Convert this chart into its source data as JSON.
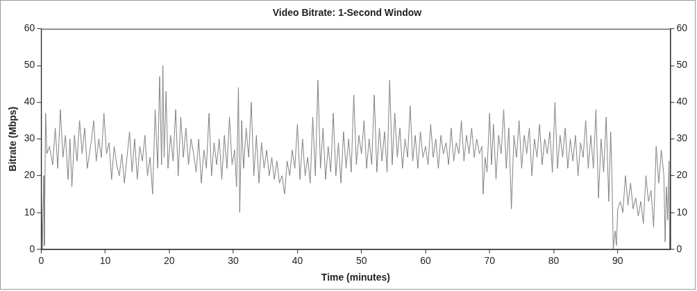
{
  "chart_data": {
    "type": "line",
    "title": "Video Bitrate: 1-Second Window",
    "xlabel": "Time (minutes)",
    "ylabel": "Bitrate (Mbps)",
    "xlim": [
      0,
      98.2
    ],
    "xticks": [
      0,
      10,
      20,
      30,
      40,
      50,
      60,
      70,
      80,
      90
    ],
    "ylim": [
      0,
      60
    ],
    "yticks": [
      0,
      10,
      20,
      30,
      40,
      50,
      60
    ],
    "y2lim": [
      0,
      60
    ],
    "y2ticks": [
      0,
      10,
      20,
      30,
      40,
      50,
      60
    ],
    "grid": false,
    "legend": false,
    "marker": "none",
    "line_style": "solid",
    "series": [
      {
        "color": "#808080",
        "x": [
          0.0,
          0.2,
          0.4,
          0.5,
          0.7,
          0.9,
          1.3,
          1.8,
          2.2,
          2.6,
          3.0,
          3.4,
          3.8,
          4.2,
          4.5,
          4.8,
          5.2,
          5.6,
          6.0,
          6.4,
          6.8,
          7.2,
          7.8,
          8.2,
          8.6,
          9.0,
          9.4,
          9.8,
          10.2,
          10.6,
          11.0,
          11.4,
          11.8,
          12.2,
          12.6,
          13.0,
          13.4,
          13.8,
          14.2,
          14.6,
          15.0,
          15.4,
          15.8,
          16.2,
          16.6,
          17.0,
          17.4,
          17.8,
          18.2,
          18.5,
          18.8,
          19.0,
          19.2,
          19.5,
          19.8,
          20.2,
          20.6,
          21.0,
          21.4,
          21.8,
          22.2,
          22.6,
          23.0,
          23.4,
          23.8,
          24.2,
          24.6,
          25.0,
          25.4,
          25.8,
          26.2,
          26.6,
          27.0,
          27.4,
          27.8,
          28.2,
          28.6,
          29.0,
          29.4,
          29.8,
          30.2,
          30.5,
          30.8,
          31.0,
          31.3,
          31.6,
          32.0,
          32.4,
          32.8,
          33.2,
          33.6,
          34.0,
          34.4,
          34.8,
          35.2,
          35.6,
          36.0,
          36.4,
          36.8,
          37.2,
          37.6,
          38.0,
          38.4,
          38.8,
          39.2,
          39.6,
          40.0,
          40.4,
          40.8,
          41.2,
          41.6,
          42.0,
          42.4,
          42.8,
          43.2,
          43.6,
          44.0,
          44.4,
          44.8,
          45.2,
          45.6,
          46.0,
          46.4,
          46.8,
          47.2,
          47.6,
          48.0,
          48.4,
          48.8,
          49.2,
          49.6,
          50.0,
          50.4,
          50.8,
          51.2,
          51.6,
          52.0,
          52.4,
          52.8,
          53.2,
          53.6,
          54.0,
          54.4,
          54.8,
          55.2,
          55.6,
          56.0,
          56.4,
          56.8,
          57.2,
          57.6,
          58.0,
          58.4,
          58.8,
          59.2,
          59.6,
          60.0,
          60.4,
          60.8,
          61.2,
          61.6,
          62.0,
          62.4,
          62.8,
          63.2,
          63.6,
          64.0,
          64.4,
          64.8,
          65.2,
          65.6,
          66.0,
          66.4,
          66.8,
          67.2,
          67.6,
          68.0,
          68.4,
          68.8,
          69.0,
          69.3,
          69.6,
          70.0,
          70.3,
          70.6,
          71.0,
          71.4,
          71.8,
          72.2,
          72.6,
          73.0,
          73.4,
          73.8,
          74.2,
          74.6,
          75.0,
          75.4,
          75.8,
          76.2,
          76.6,
          77.0,
          77.4,
          77.8,
          78.2,
          78.6,
          79.0,
          79.4,
          79.8,
          80.2,
          80.6,
          81.0,
          81.4,
          81.8,
          82.2,
          82.6,
          83.0,
          83.4,
          83.8,
          84.2,
          84.6,
          85.0,
          85.4,
          85.8,
          86.2,
          86.6,
          87.0,
          87.4,
          87.8,
          88.2,
          88.6,
          88.9,
          89.1,
          89.3,
          89.6,
          89.8,
          90.0,
          90.4,
          90.8,
          91.2,
          91.6,
          92.0,
          92.4,
          92.8,
          93.2,
          93.6,
          94.0,
          94.4,
          94.8,
          95.2,
          95.6,
          96.0,
          96.4,
          96.8,
          97.2,
          97.4,
          97.6,
          97.8,
          98.0,
          98.1
        ],
        "values": [
          18,
          0,
          20,
          1,
          37,
          26,
          28,
          23,
          33,
          22,
          38,
          25,
          31,
          19,
          30,
          17,
          31,
          24,
          35,
          26,
          33,
          22,
          29,
          35,
          24,
          30,
          25,
          37,
          26,
          29,
          19,
          28,
          23,
          20,
          26,
          18,
          25,
          32,
          21,
          30,
          19,
          28,
          24,
          31,
          20,
          25,
          15,
          38,
          22,
          47,
          23,
          50,
          25,
          43,
          22,
          31,
          24,
          38,
          20,
          36,
          25,
          33,
          23,
          30,
          26,
          21,
          30,
          18,
          27,
          22,
          37,
          20,
          29,
          23,
          30,
          19,
          31,
          22,
          36,
          23,
          27,
          17,
          44,
          10,
          35,
          22,
          33,
          25,
          40,
          20,
          31,
          18,
          29,
          22,
          27,
          20,
          25,
          19,
          24,
          18,
          20,
          15,
          24,
          20,
          27,
          22,
          34,
          19,
          30,
          20,
          25,
          18,
          36,
          20,
          46,
          22,
          33,
          19,
          28,
          21,
          37,
          20,
          29,
          18,
          32,
          22,
          30,
          21,
          42,
          23,
          31,
          26,
          35,
          22,
          30,
          23,
          42,
          21,
          33,
          24,
          32,
          21,
          46,
          23,
          37,
          25,
          33,
          22,
          30,
          25,
          39,
          24,
          31,
          22,
          32,
          25,
          28,
          23,
          34,
          25,
          30,
          22,
          31,
          26,
          29,
          23,
          33,
          24,
          29,
          26,
          35,
          24,
          31,
          26,
          33,
          25,
          30,
          26,
          28,
          15,
          25,
          21,
          37,
          23,
          34,
          19,
          31,
          26,
          38,
          22,
          33,
          11,
          31,
          25,
          35,
          22,
          31,
          26,
          33,
          20,
          30,
          25,
          34,
          23,
          30,
          26,
          32,
          21,
          40,
          22,
          31,
          25,
          33,
          22,
          30,
          24,
          31,
          20,
          29,
          25,
          35,
          22,
          31,
          22,
          38,
          14,
          30,
          21,
          36,
          13,
          32,
          20,
          0,
          5,
          1,
          11,
          13,
          10,
          20,
          12,
          18,
          11,
          14,
          9,
          13,
          7,
          20,
          13,
          16,
          6,
          28,
          18,
          27,
          20,
          2,
          17,
          8,
          24,
          0
        ]
      }
    ]
  }
}
